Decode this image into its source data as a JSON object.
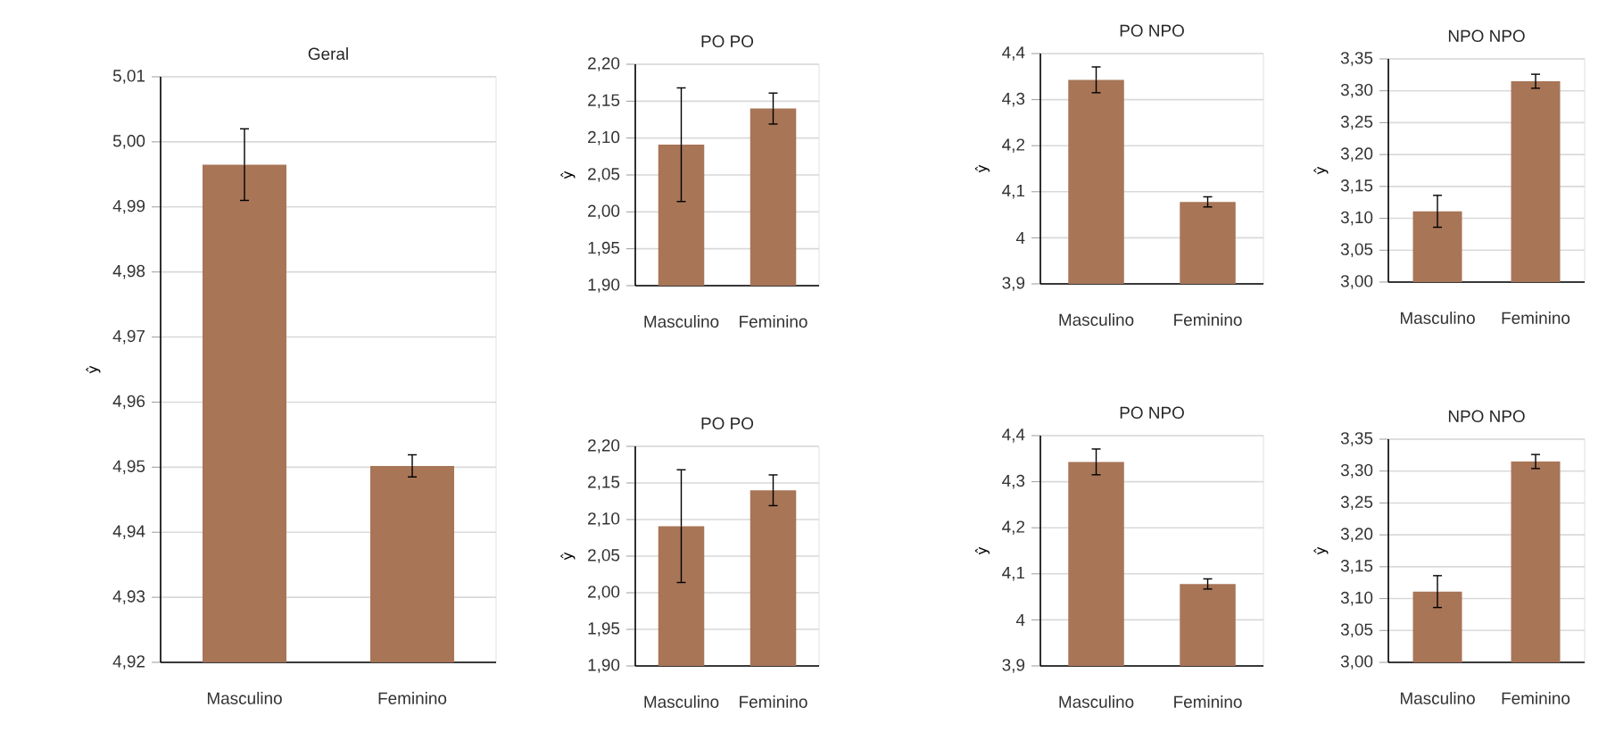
{
  "chart_data": [
    {
      "type": "bar",
      "title": "Geral",
      "ylabel": "ŷ",
      "categories": [
        "Masculino",
        "Feminino"
      ],
      "values": [
        4.9965,
        4.9502
      ],
      "errors": [
        0.0055,
        0.0017
      ],
      "color": "#a87557",
      "ylim": [
        4.92,
        5.01
      ],
      "yticks": [
        {
          "value": 4.92,
          "label": "4,92"
        },
        {
          "value": 4.93,
          "label": "4,93"
        },
        {
          "value": 4.94,
          "label": "4,94"
        },
        {
          "value": 4.95,
          "label": "4,95"
        },
        {
          "value": 4.96,
          "label": "4,96"
        },
        {
          "value": 4.97,
          "label": "4,97"
        },
        {
          "value": 4.98,
          "label": "4,98"
        },
        {
          "value": 4.99,
          "label": "4,99"
        },
        {
          "value": 5.0,
          "label": "5,00"
        },
        {
          "value": 5.01,
          "label": "5,01"
        }
      ],
      "grid": "y"
    },
    {
      "type": "bar",
      "title": "PO PO",
      "ylabel": "ŷ",
      "categories": [
        "Masculino",
        "Feminino"
      ],
      "values": [
        2.091,
        2.14
      ],
      "errors": [
        0.077,
        0.021
      ],
      "color": "#a87557",
      "ylim": [
        1.9,
        2.2
      ],
      "yticks": [
        {
          "value": 1.9,
          "label": "1,90"
        },
        {
          "value": 1.95,
          "label": "1,95"
        },
        {
          "value": 2.0,
          "label": "2,00"
        },
        {
          "value": 2.05,
          "label": "2,05"
        },
        {
          "value": 2.1,
          "label": "2,10"
        },
        {
          "value": 2.15,
          "label": "2,15"
        },
        {
          "value": 2.2,
          "label": "2,20"
        }
      ],
      "grid": "y"
    },
    {
      "type": "bar",
      "title": "PO NPO",
      "ylabel": "ŷ",
      "categories": [
        "Masculino",
        "Feminino"
      ],
      "values": [
        4.343,
        4.078
      ],
      "errors": [
        0.028,
        0.011
      ],
      "color": "#a87557",
      "ylim": [
        3.9,
        4.4
      ],
      "yticks": [
        {
          "value": 3.9,
          "label": "3,9"
        },
        {
          "value": 4.0,
          "label": "4"
        },
        {
          "value": 4.1,
          "label": "4,1"
        },
        {
          "value": 4.2,
          "label": "4,2"
        },
        {
          "value": 4.3,
          "label": "4,3"
        },
        {
          "value": 4.4,
          "label": "4,4"
        }
      ],
      "grid": "y"
    },
    {
      "type": "bar",
      "title": "NPO NPO",
      "ylabel": "ŷ",
      "categories": [
        "Masculino",
        "Feminino"
      ],
      "values": [
        3.111,
        3.315
      ],
      "errors": [
        0.025,
        0.011
      ],
      "color": "#a87557",
      "ylim": [
        3.0,
        3.35
      ],
      "yticks": [
        {
          "value": 3.0,
          "label": "3,00"
        },
        {
          "value": 3.05,
          "label": "3,05"
        },
        {
          "value": 3.1,
          "label": "3,10"
        },
        {
          "value": 3.15,
          "label": "3,15"
        },
        {
          "value": 3.2,
          "label": "3,20"
        },
        {
          "value": 3.25,
          "label": "3,25"
        },
        {
          "value": 3.3,
          "label": "3,30"
        },
        {
          "value": 3.35,
          "label": "3,35"
        }
      ],
      "grid": "y"
    },
    {
      "type": "bar",
      "title": "PO PO",
      "ylabel": "ŷ",
      "categories": [
        "Masculino",
        "Feminino"
      ],
      "values": [
        2.091,
        2.14
      ],
      "errors": [
        0.077,
        0.021
      ],
      "color": "#a87557",
      "ylim": [
        1.9,
        2.2
      ],
      "yticks": [
        {
          "value": 1.9,
          "label": "1,90"
        },
        {
          "value": 1.95,
          "label": "1,95"
        },
        {
          "value": 2.0,
          "label": "2,00"
        },
        {
          "value": 2.05,
          "label": "2,05"
        },
        {
          "value": 2.1,
          "label": "2,10"
        },
        {
          "value": 2.15,
          "label": "2,15"
        },
        {
          "value": 2.2,
          "label": "2,20"
        }
      ],
      "grid": "y"
    },
    {
      "type": "bar",
      "title": "PO NPO",
      "ylabel": "ŷ",
      "categories": [
        "Masculino",
        "Feminino"
      ],
      "values": [
        4.343,
        4.078
      ],
      "errors": [
        0.028,
        0.011
      ],
      "color": "#a87557",
      "ylim": [
        3.9,
        4.4
      ],
      "yticks": [
        {
          "value": 3.9,
          "label": "3,9"
        },
        {
          "value": 4.0,
          "label": "4"
        },
        {
          "value": 4.1,
          "label": "4,1"
        },
        {
          "value": 4.2,
          "label": "4,2"
        },
        {
          "value": 4.3,
          "label": "4,3"
        },
        {
          "value": 4.4,
          "label": "4,4"
        }
      ],
      "grid": "y"
    },
    {
      "type": "bar",
      "title": "NPO NPO",
      "ylabel": "ŷ",
      "categories": [
        "Masculino",
        "Feminino"
      ],
      "values": [
        3.111,
        3.315
      ],
      "errors": [
        0.025,
        0.011
      ],
      "color": "#a87557",
      "ylim": [
        3.0,
        3.35
      ],
      "yticks": [
        {
          "value": 3.0,
          "label": "3,00"
        },
        {
          "value": 3.05,
          "label": "3,05"
        },
        {
          "value": 3.1,
          "label": "3,10"
        },
        {
          "value": 3.15,
          "label": "3,15"
        },
        {
          "value": 3.2,
          "label": "3,20"
        },
        {
          "value": 3.25,
          "label": "3,25"
        },
        {
          "value": 3.3,
          "label": "3,30"
        },
        {
          "value": 3.35,
          "label": "3,35"
        }
      ],
      "grid": "y"
    }
  ]
}
